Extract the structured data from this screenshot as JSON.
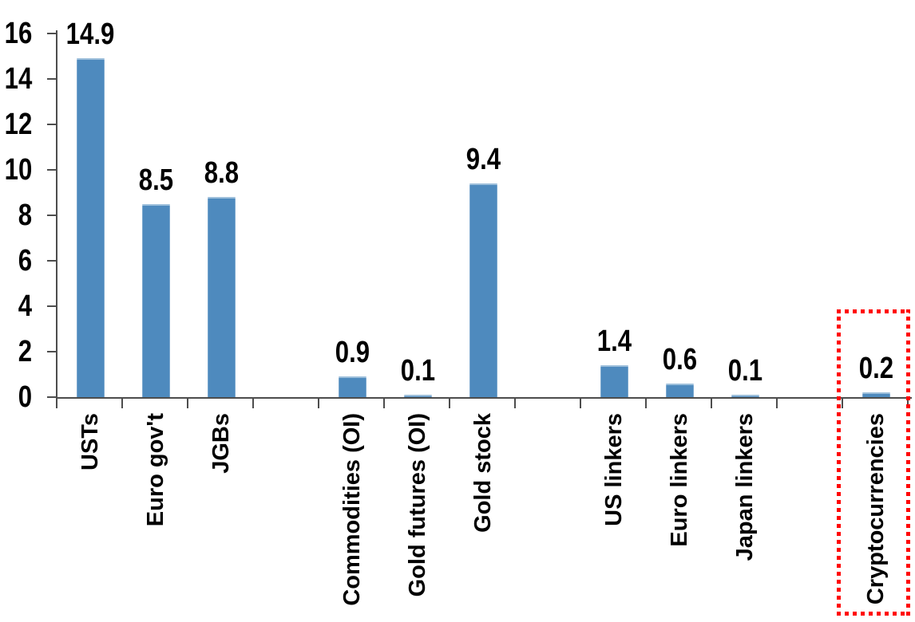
{
  "chart_data": {
    "type": "bar",
    "title": "",
    "xlabel": "",
    "ylabel": "",
    "categories": [
      "USTs",
      "Euro gov't",
      "JGBs",
      "Commodities (OI)",
      "Gold futures (OI)",
      "Gold stock",
      "US linkers",
      "Euro linkers",
      "Japan linkers",
      "Cryptocurrencies"
    ],
    "values": [
      14.9,
      8.5,
      8.8,
      0.9,
      0.1,
      9.4,
      1.4,
      0.6,
      0.1,
      0.2
    ],
    "data_labels": [
      "14.9",
      "8.5",
      "8.8",
      "0.9",
      "0.1",
      "9.4",
      "1.4",
      "0.6",
      "0.1",
      "0.2"
    ],
    "slot_index": [
      0,
      1,
      2,
      4,
      5,
      6,
      8,
      9,
      10,
      12
    ],
    "total_slots": 13,
    "group_gaps_after": [
      "JGBs",
      "Gold stock",
      "Japan linkers"
    ],
    "ylim": [
      0,
      16
    ],
    "ytick_step": 2,
    "ytick_labels": [
      "0",
      "2",
      "4",
      "6",
      "8",
      "10",
      "12",
      "14",
      "16"
    ],
    "grid": false,
    "legend": null,
    "category_label_rotation": "vertical-bottom-to-top",
    "bar_color": "#4E8ABE",
    "axis_color": "#4D4D4D",
    "text_color": "#000000",
    "highlight": {
      "category": "Cryptocurrencies",
      "style": "dotted-box",
      "color": "#FF0000"
    }
  }
}
